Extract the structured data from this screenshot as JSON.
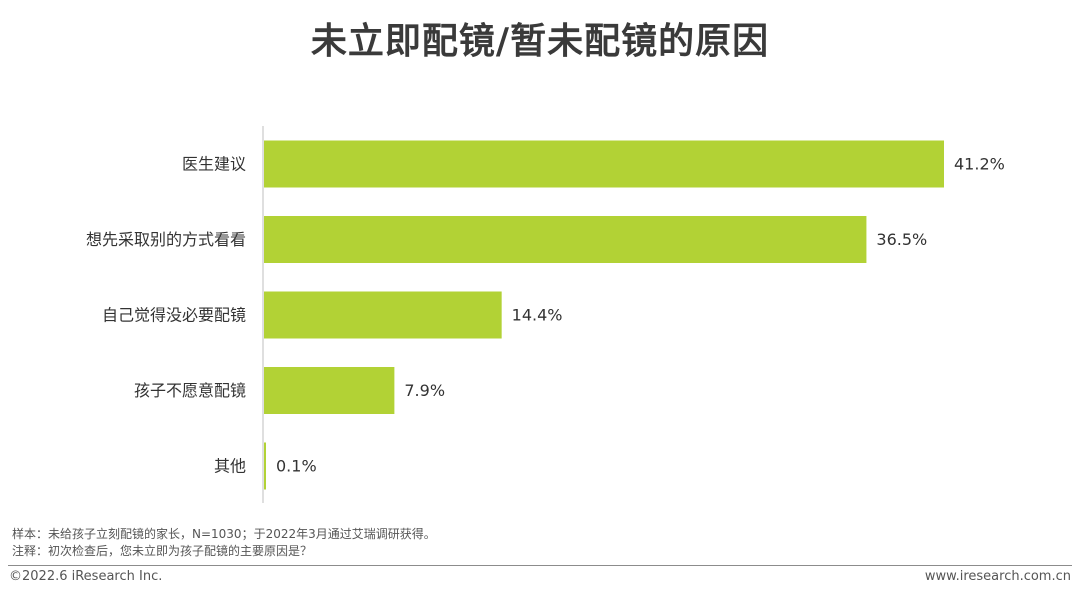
{
  "title": "未立即配镜/暂未配镜的原因",
  "chart_data": {
    "type": "bar",
    "orientation": "horizontal",
    "categories": [
      "医生建议",
      "想先采取别的方式看看",
      "自己觉得没必要配镜",
      "孩子不愿意配镜",
      "其他"
    ],
    "values": [
      41.2,
      36.5,
      14.4,
      7.9,
      0.1
    ],
    "value_labels": [
      "41.2%",
      "36.5%",
      "14.4%",
      "7.9%",
      "0.1%"
    ],
    "unit": "%",
    "xlim": [
      0,
      41.2
    ],
    "grid": false,
    "bar_color": "#b2d235",
    "axis_color": "#bfbfbf"
  },
  "footer": {
    "sample_note": "样本：未给孩子立刻配镜的家长，N=1030；于2022年3月通过艾瑞调研获得。",
    "annotation_note": "注释：初次检查后，您未立即为孩子配镜的主要原因是？",
    "copyright": "©2022.6 iResearch Inc.",
    "website": "www.iresearch.com.cn"
  }
}
